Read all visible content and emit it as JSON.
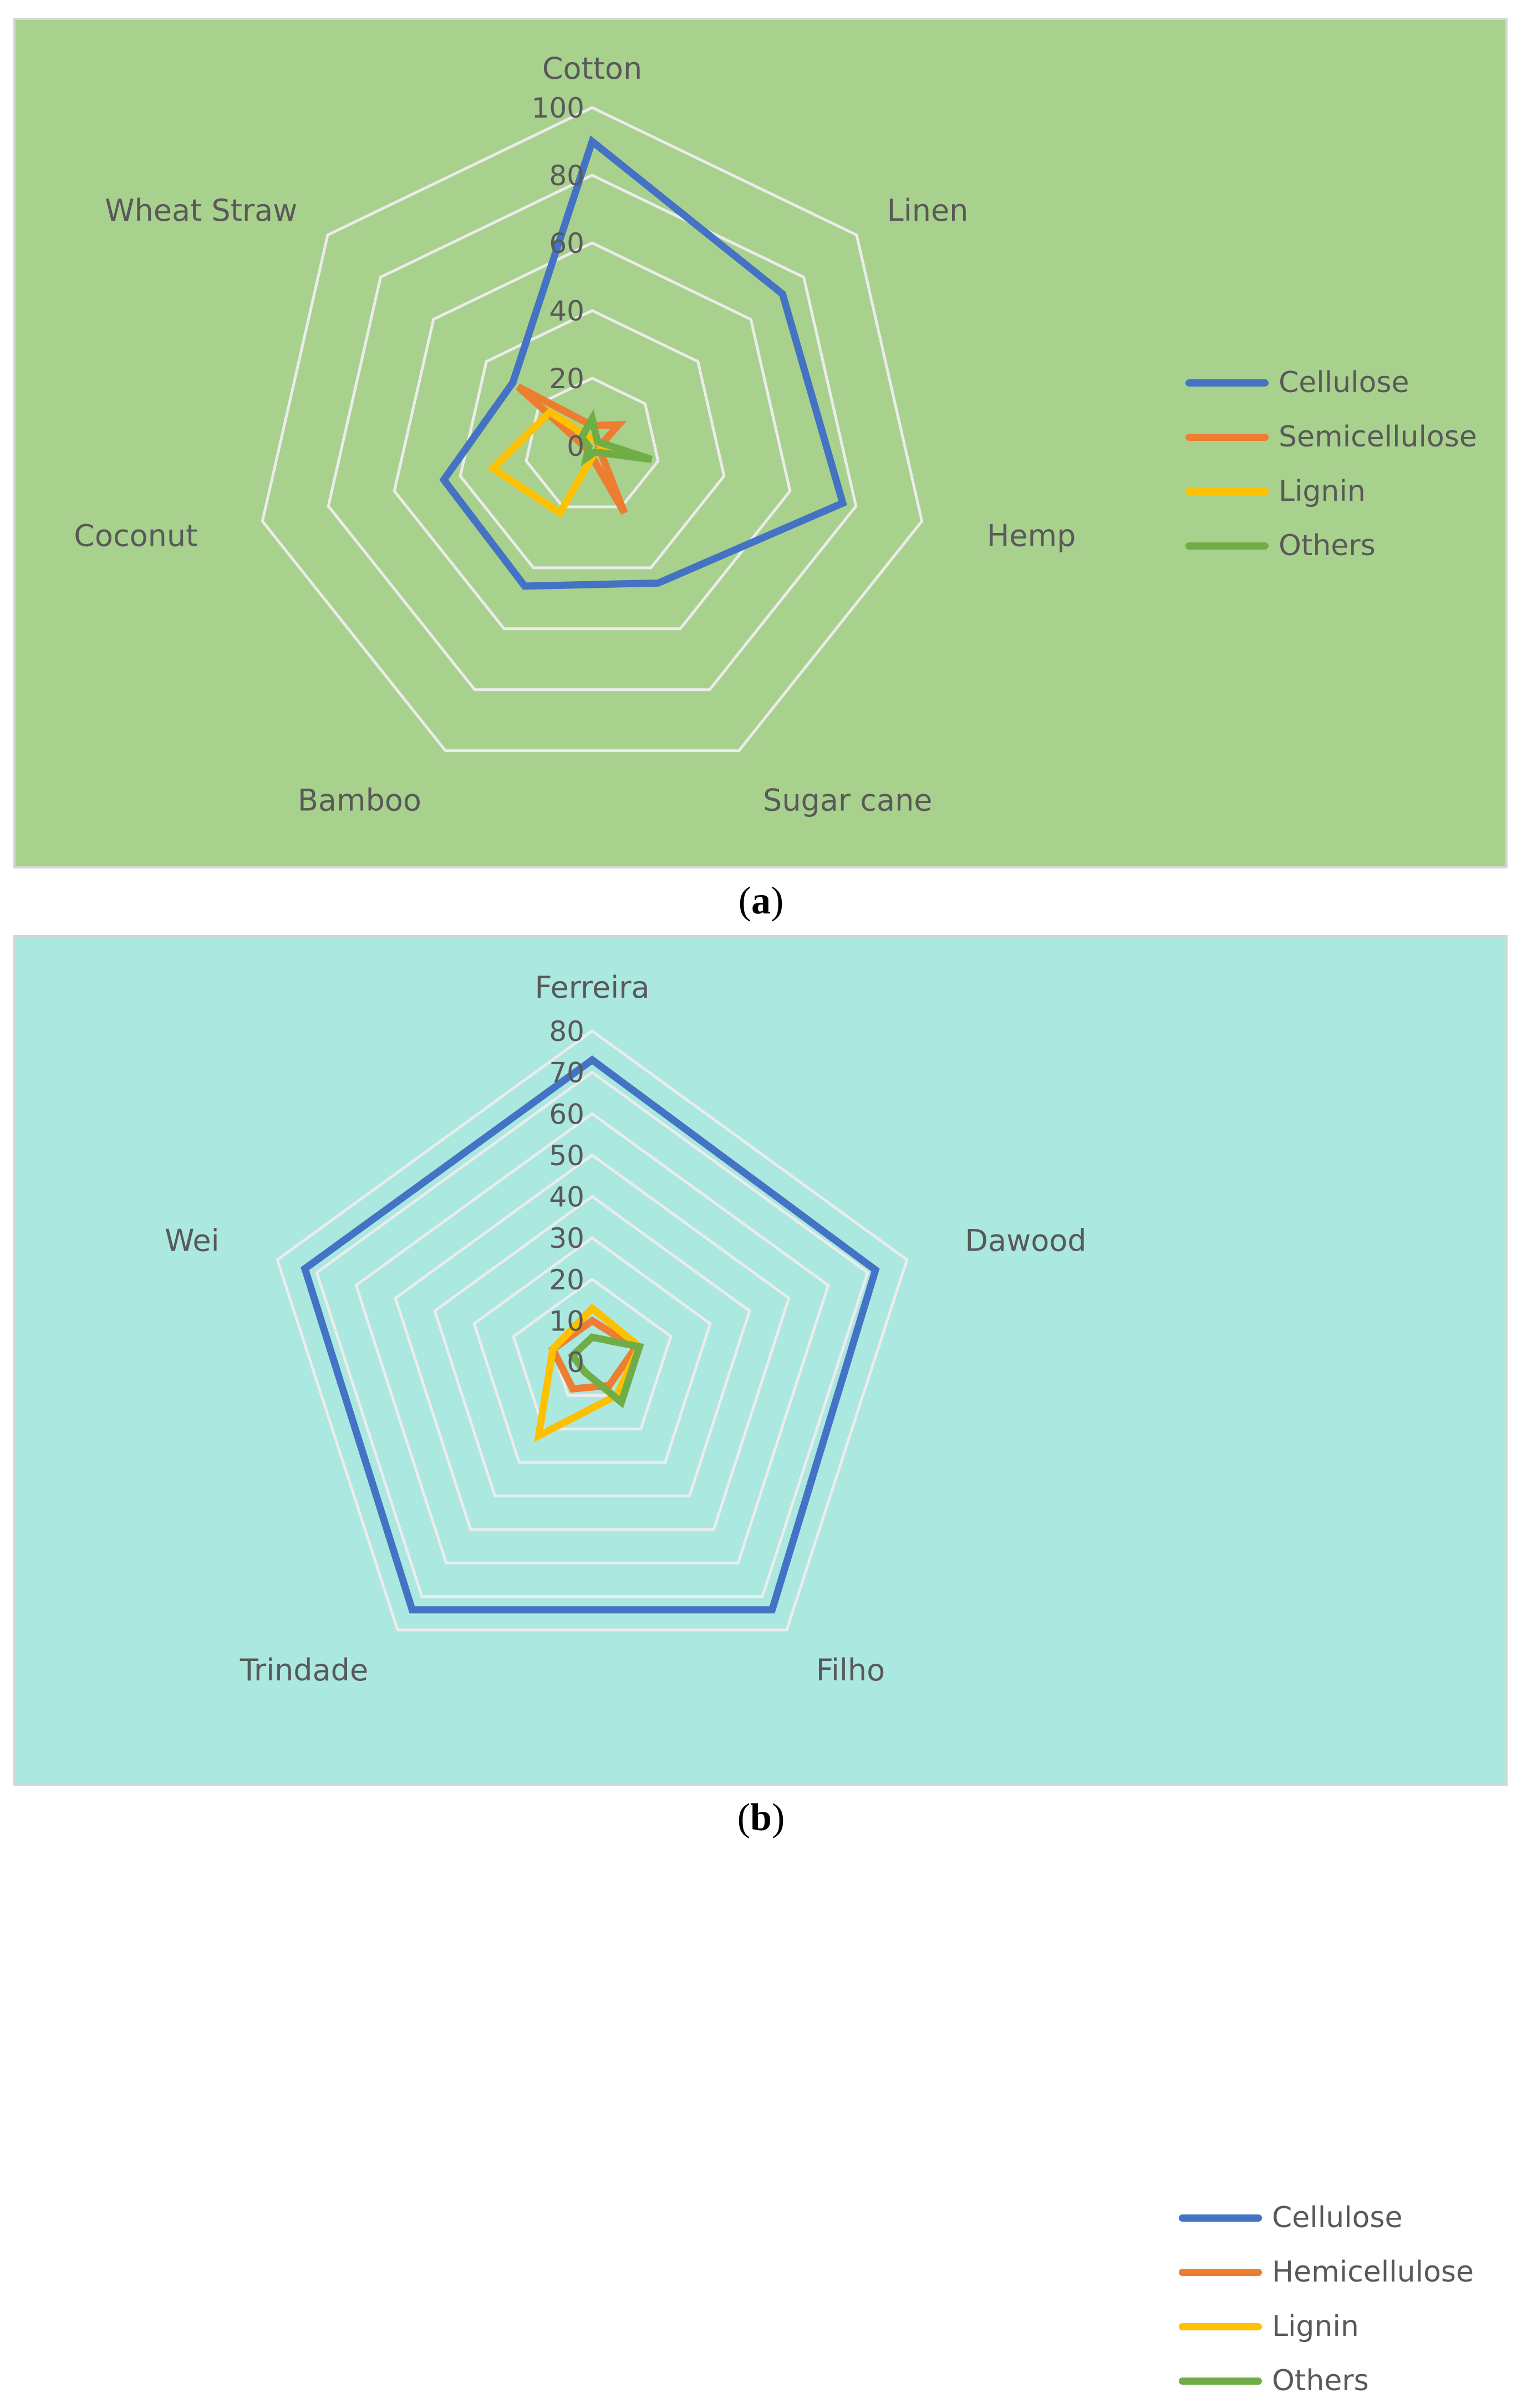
{
  "chart_data": [
    {
      "type": "radar",
      "panel_label": "a",
      "background": "#a9d18e",
      "categories": [
        "Cotton",
        "Linen",
        "Hemp",
        "Sugar cane",
        "Bamboo",
        "Coconut",
        "Wheat Straw"
      ],
      "r_ticks": [
        "0",
        "20",
        "40",
        "60",
        "80",
        "100"
      ],
      "rlim": [
        0,
        100
      ],
      "grid": true,
      "legend_position": "right",
      "series": [
        {
          "name": "Cellulose",
          "color": "#4472c4",
          "values": [
            90,
            72,
            76,
            45,
            46,
            45,
            30
          ]
        },
        {
          "name": "Semicellulose",
          "color": "#ed7d31",
          "values": [
            6,
            10,
            2,
            22,
            2,
            2,
            28
          ]
        },
        {
          "name": "Lignin",
          "color": "#ffc000",
          "values": [
            2,
            2,
            4,
            2,
            22,
            30,
            16
          ]
        },
        {
          "name": "Others",
          "color": "#70ad47",
          "values": [
            8,
            2,
            18,
            2,
            4,
            1,
            4
          ]
        }
      ]
    },
    {
      "type": "radar",
      "panel_label": "b",
      "background": "#aae8e0",
      "categories": [
        "Ferreira",
        "Dawood",
        "Filho",
        "Trindade",
        "Wei"
      ],
      "r_ticks": [
        "0",
        "10",
        "20",
        "30",
        "40",
        "50",
        "60",
        "70",
        "80"
      ],
      "rlim": [
        0,
        80
      ],
      "grid": true,
      "legend_position": "right",
      "series": [
        {
          "name": "Cellulose",
          "color": "#4472c4",
          "values": [
            73,
            72,
            74,
            74,
            73
          ]
        },
        {
          "name": "Hemicellulose",
          "color": "#ed7d31",
          "values": [
            10,
            11,
            7,
            8,
            10
          ]
        },
        {
          "name": "Lignin",
          "color": "#ffc000",
          "values": [
            13,
            12,
            10,
            22,
            10
          ]
        },
        {
          "name": "Others",
          "color": "#70ad47",
          "values": [
            6,
            12,
            12,
            3,
            5
          ]
        }
      ]
    }
  ],
  "captions": {
    "a": "a",
    "b": "b"
  }
}
